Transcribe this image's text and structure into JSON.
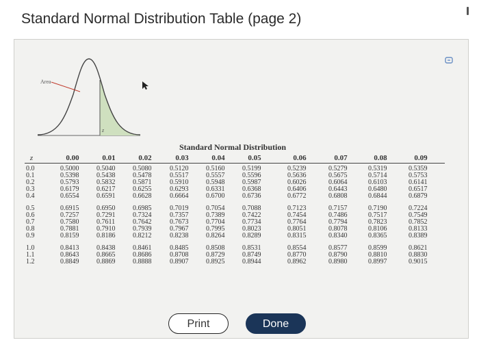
{
  "window": {
    "title": "Standard Normal Distribution Table (page 2)"
  },
  "figure": {
    "area_label": "Area",
    "z_label": "z",
    "colors": {
      "curve": "#444444",
      "shaded_area": "#cfe0bf"
    }
  },
  "table": {
    "title": "Standard Normal Distribution",
    "z_header": "z",
    "columns": [
      "0.00",
      "0.01",
      "0.02",
      "0.03",
      "0.04",
      "0.05",
      "0.06",
      "0.07",
      "0.08",
      "0.09"
    ],
    "groups": [
      {
        "z": [
          "0.0",
          "0.1",
          "0.2",
          "0.3",
          "0.4"
        ],
        "rows": [
          [
            "0.5000",
            "0.5040",
            "0.5080",
            "0.5120",
            "0.5160",
            "0.5199",
            "0.5239",
            "0.5279",
            "0.5319",
            "0.5359"
          ],
          [
            "0.5398",
            "0.5438",
            "0.5478",
            "0.5517",
            "0.5557",
            "0.5596",
            "0.5636",
            "0.5675",
            "0.5714",
            "0.5753"
          ],
          [
            "0.5793",
            "0.5832",
            "0.5871",
            "0.5910",
            "0.5948",
            "0.5987",
            "0.6026",
            "0.6064",
            "0.6103",
            "0.6141"
          ],
          [
            "0.6179",
            "0.6217",
            "0.6255",
            "0.6293",
            "0.6331",
            "0.6368",
            "0.6406",
            "0.6443",
            "0.6480",
            "0.6517"
          ],
          [
            "0.6554",
            "0.6591",
            "0.6628",
            "0.6664",
            "0.6700",
            "0.6736",
            "0.6772",
            "0.6808",
            "0.6844",
            "0.6879"
          ]
        ]
      },
      {
        "z": [
          "0.5",
          "0.6",
          "0.7",
          "0.8",
          "0.9"
        ],
        "rows": [
          [
            "0.6915",
            "0.6950",
            "0.6985",
            "0.7019",
            "0.7054",
            "0.7088",
            "0.7123",
            "0.7157",
            "0.7190",
            "0.7224"
          ],
          [
            "0.7257",
            "0.7291",
            "0.7324",
            "0.7357",
            "0.7389",
            "0.7422",
            "0.7454",
            "0.7486",
            "0.7517",
            "0.7549"
          ],
          [
            "0.7580",
            "0.7611",
            "0.7642",
            "0.7673",
            "0.7704",
            "0.7734",
            "0.7764",
            "0.7794",
            "0.7823",
            "0.7852"
          ],
          [
            "0.7881",
            "0.7910",
            "0.7939",
            "0.7967",
            "0.7995",
            "0.8023",
            "0.8051",
            "0.8078",
            "0.8106",
            "0.8133"
          ],
          [
            "0.8159",
            "0.8186",
            "0.8212",
            "0.8238",
            "0.8264",
            "0.8289",
            "0.8315",
            "0.8340",
            "0.8365",
            "0.8389"
          ]
        ]
      },
      {
        "z": [
          "1.0",
          "1.1",
          "1.2"
        ],
        "rows": [
          [
            "0.8413",
            "0.8438",
            "0.8461",
            "0.8485",
            "0.8508",
            "0.8531",
            "0.8554",
            "0.8577",
            "0.8599",
            "0.8621"
          ],
          [
            "0.8643",
            "0.8665",
            "0.8686",
            "0.8708",
            "0.8729",
            "0.8749",
            "0.8770",
            "0.8790",
            "0.8810",
            "0.8830"
          ],
          [
            "0.8849",
            "0.8869",
            "0.8888",
            "0.8907",
            "0.8925",
            "0.8944",
            "0.8962",
            "0.8980",
            "0.8997",
            "0.9015"
          ]
        ]
      }
    ]
  },
  "buttons": {
    "print_label": "Print",
    "done_label": "Done"
  },
  "icons": {
    "panel_control": "expand-icon",
    "pointer": "cursor-arrow-icon"
  }
}
